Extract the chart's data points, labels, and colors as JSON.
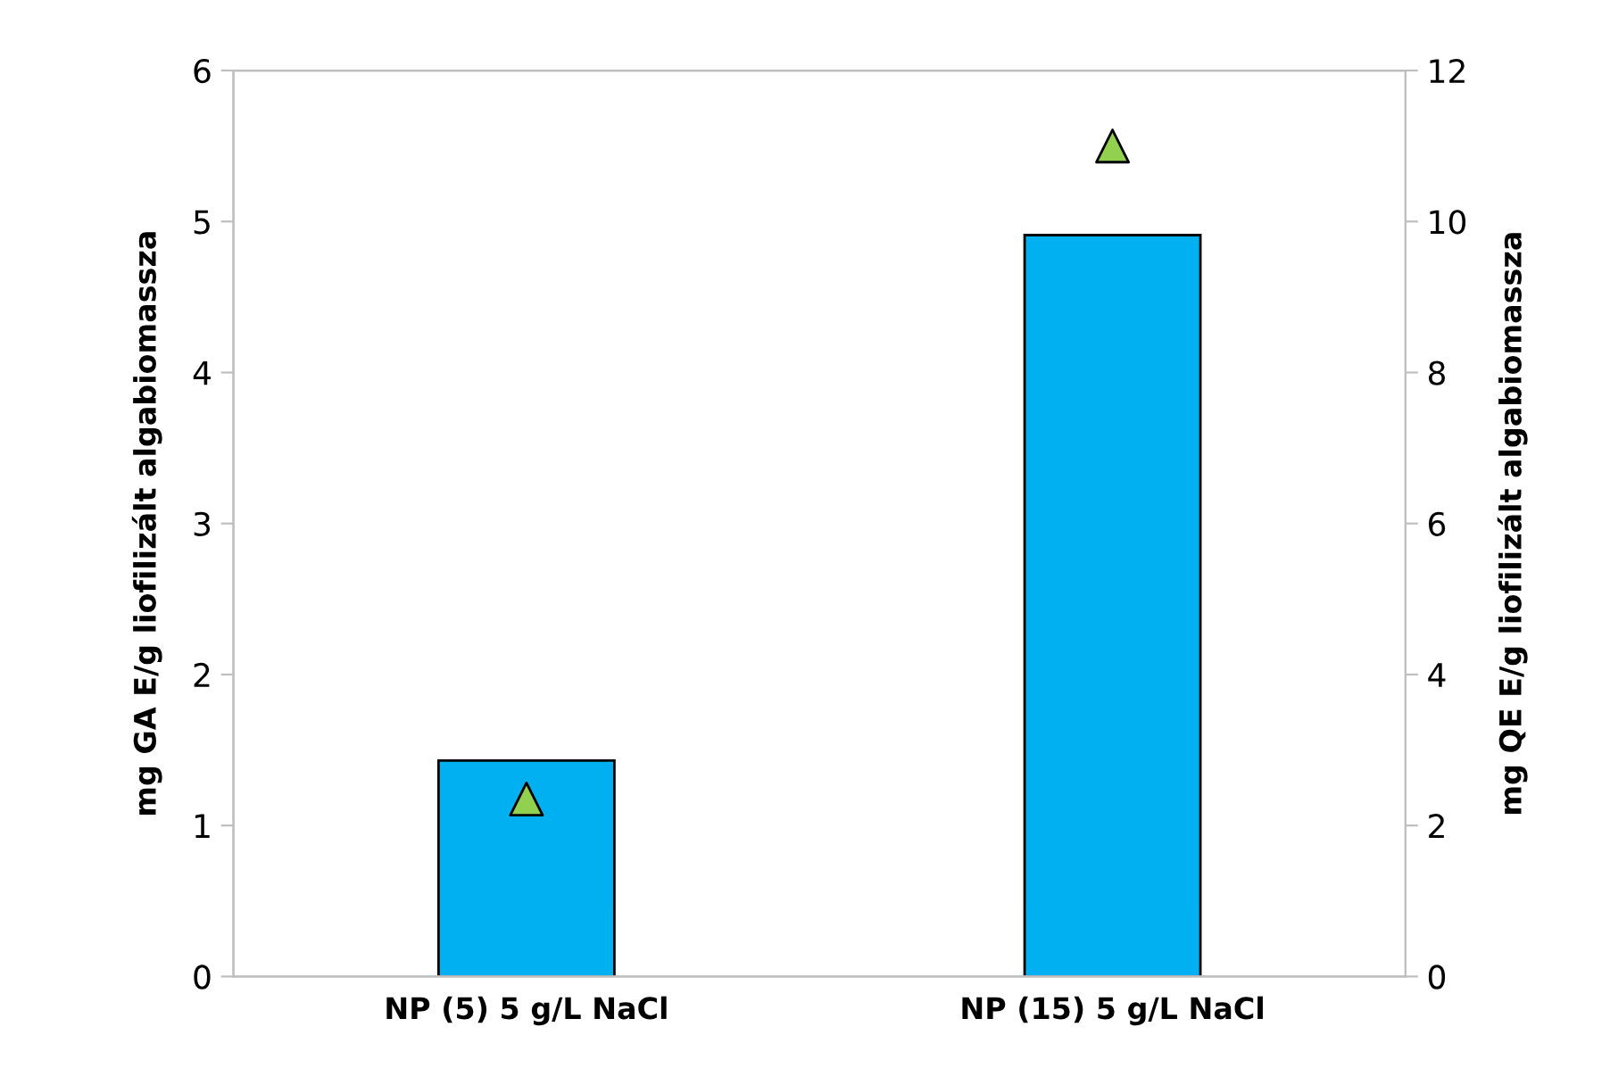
{
  "chart_data": {
    "type": "bar",
    "categories": [
      "NP (5) 5 g/L NaCl",
      "NP (15) 5 g/L NaCl"
    ],
    "ylabel": "mg GA E/g liofilizált algabiomassza",
    "y2label": "mg QE E/g liofilizált algabiomassza",
    "ylim": [
      0,
      6
    ],
    "yticks": [
      0,
      1,
      2,
      3,
      4,
      5,
      6
    ],
    "y2lim": [
      0,
      12
    ],
    "y2ticks": [
      0,
      2,
      4,
      6,
      8,
      10,
      12
    ],
    "grid": false,
    "legend": false,
    "series": [
      {
        "color": "#00b0f0",
        "values": [
          1.43,
          4.91
        ]
      },
      {
        "type": "scatter",
        "axis": "y2",
        "color": "#92d050",
        "marker": "triangle",
        "values": [
          2.35,
          11.0
        ]
      }
    ]
  }
}
